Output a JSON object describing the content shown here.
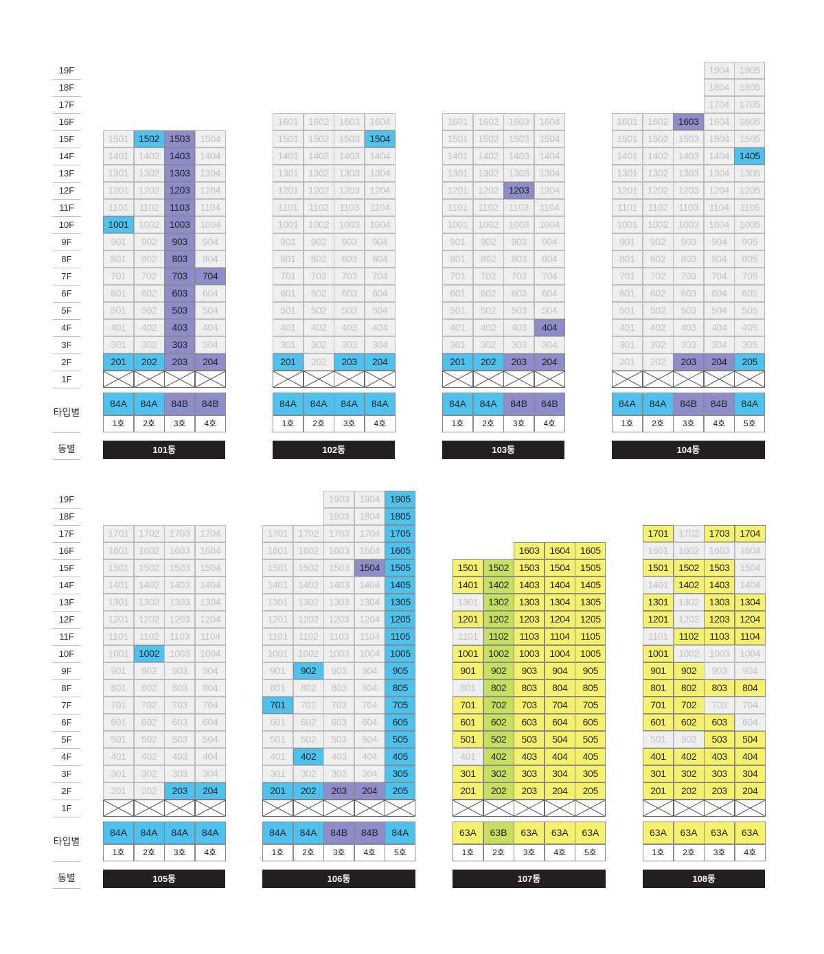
{
  "colors": {
    "unavailable_bg": "#efefef",
    "blue": "#4cc3ee",
    "purple": "#8e8cc9",
    "yellow": "#f6f36a",
    "green": "#c8df5d",
    "name_bar": "#231f20"
  },
  "legend_state_codes": {
    "n": "unavailable (grey)",
    "b": "blue",
    "p": "purple",
    "y": "yellow",
    "g": "green"
  },
  "row1": {
    "floors": [
      "19F",
      "18F",
      "17F",
      "16F",
      "15F",
      "14F",
      "13F",
      "12F",
      "11F",
      "10F",
      "9F",
      "8F",
      "7F",
      "6F",
      "5F",
      "4F",
      "3F",
      "2F",
      "1F"
    ],
    "type_label": "타입별",
    "name_label": "동별"
  },
  "row2": {
    "floors": [
      "19F",
      "18F",
      "17F",
      "16F",
      "15F",
      "14F",
      "13F",
      "12F",
      "11F",
      "10F",
      "9F",
      "8F",
      "7F",
      "6F",
      "5F",
      "4F",
      "3F",
      "2F",
      "1F"
    ],
    "type_label": "타입별",
    "name_label": "동별"
  },
  "buildings": [
    {
      "name": "101동",
      "units": [
        "1호",
        "2호",
        "3호",
        "4호"
      ],
      "types": [
        "84A",
        "84A",
        "84B",
        "84B"
      ],
      "type_colors": [
        "b",
        "b",
        "p",
        "p"
      ],
      "top_floor": [
        15,
        15,
        15,
        15
      ],
      "status": {
        "15": "nbpn",
        "14": "nnpn",
        "13": "nnpn",
        "12": "nnpn",
        "11": "nnpn",
        "10": "bnpn",
        "9": "nnpn",
        "8": "nnpn",
        "7": "nnpp",
        "6": "nnpn",
        "5": "nnpn",
        "4": "nnpn",
        "3": "nnpn",
        "2": "bbpp"
      }
    },
    {
      "name": "102동",
      "units": [
        "1호",
        "2호",
        "3호",
        "4호"
      ],
      "types": [
        "84A",
        "84A",
        "84A",
        "84A"
      ],
      "type_colors": [
        "b",
        "b",
        "b",
        "b"
      ],
      "top_floor": [
        16,
        16,
        16,
        16
      ],
      "status": {
        "16": "nnnn",
        "15": "nnnb",
        "14": "nnnn",
        "13": "nnnn",
        "12": "nnnn",
        "11": "nnnn",
        "10": "nnnn",
        "9": "nnnn",
        "8": "nnnn",
        "7": "nnnn",
        "6": "nnnn",
        "5": "nnnn",
        "4": "nnnn",
        "3": "nnnn",
        "2": "bnbb"
      }
    },
    {
      "name": "103동",
      "units": [
        "1호",
        "2호",
        "3호",
        "4호"
      ],
      "types": [
        "84A",
        "84A",
        "84B",
        "84B"
      ],
      "type_colors": [
        "b",
        "b",
        "p",
        "p"
      ],
      "top_floor": [
        16,
        16,
        16,
        16
      ],
      "status": {
        "16": "nnnn",
        "15": "nnnn",
        "14": "nnnn",
        "13": "nnnn",
        "12": "nnpn",
        "11": "nnnn",
        "10": "nnnn",
        "9": "nnnn",
        "8": "nnnn",
        "7": "nnnn",
        "6": "nnnn",
        "5": "nnnn",
        "4": "nnnp",
        "3": "nnnn",
        "2": "bbpp"
      }
    },
    {
      "name": "104동",
      "units": [
        "1호",
        "2호",
        "3호",
        "4호",
        "5호"
      ],
      "types": [
        "84A",
        "84A",
        "84B",
        "84B",
        "84A"
      ],
      "type_colors": [
        "b",
        "b",
        "p",
        "p",
        "b"
      ],
      "top_floor": [
        16,
        16,
        16,
        19,
        19
      ],
      "status": {
        "19": "nnnnn",
        "18": "nnnnn",
        "17": "nnnnn",
        "16": "nnpnn",
        "15": "nnnnn",
        "14": "nnnnb",
        "13": "nnnnn",
        "12": "nnnnn",
        "11": "nnnnn",
        "10": "nnnnn",
        "9": "nnnnn",
        "8": "nnnnn",
        "7": "nnnnn",
        "6": "nnnnn",
        "5": "nnnnn",
        "4": "nnnnn",
        "3": "nnnnn",
        "2": "nnppb"
      }
    },
    {
      "name": "105동",
      "units": [
        "1호",
        "2호",
        "3호",
        "4호"
      ],
      "types": [
        "84A",
        "84A",
        "84A",
        "84A"
      ],
      "type_colors": [
        "b",
        "b",
        "b",
        "b"
      ],
      "top_floor": [
        17,
        17,
        17,
        17
      ],
      "status": {
        "17": "nnnn",
        "16": "nnnn",
        "15": "nnnn",
        "14": "nnnn",
        "13": "nnnn",
        "12": "nnnn",
        "11": "nnnn",
        "10": "nbnn",
        "9": "nnnn",
        "8": "nnnn",
        "7": "nnnn",
        "6": "nnnn",
        "5": "nnnn",
        "4": "nnnn",
        "3": "nnnn",
        "2": "nnbb"
      }
    },
    {
      "name": "106동",
      "units": [
        "1호",
        "2호",
        "3호",
        "4호",
        "5호"
      ],
      "types": [
        "84A",
        "84A",
        "84B",
        "84B",
        "84A"
      ],
      "type_colors": [
        "b",
        "b",
        "p",
        "p",
        "b"
      ],
      "top_floor": [
        17,
        17,
        19,
        19,
        19
      ],
      "status": {
        "19": "nnnnb",
        "18": "nnnnb",
        "17": "nnnnb",
        "16": "nnnnb",
        "15": "nnnpb",
        "14": "nnnnb",
        "13": "nnnnb",
        "12": "nnnnb",
        "11": "nnnnb",
        "10": "nnnnb",
        "9": "nbnnb",
        "8": "nnnnb",
        "7": "bnnnb",
        "6": "nnnnb",
        "5": "nnnnb",
        "4": "nbnnb",
        "3": "nnnnb",
        "2": "bbppb"
      }
    },
    {
      "name": "107동",
      "units": [
        "1호",
        "2호",
        "3호",
        "4호",
        "5호"
      ],
      "types": [
        "63A",
        "63B",
        "63A",
        "63A",
        "63A"
      ],
      "type_colors": [
        "y",
        "g",
        "y",
        "y",
        "y"
      ],
      "top_floor": [
        15,
        15,
        16,
        16,
        16
      ],
      "status": {
        "16": "yyyyy",
        "15": "ygyyy",
        "14": "ygyyy",
        "13": "ngyyy",
        "12": "ygyyy",
        "11": "ngyyy",
        "10": "ygyyy",
        "9": "ygyyy",
        "8": "ngyyy",
        "7": "ygyyy",
        "6": "ygyyy",
        "5": "ygyyy",
        "4": "ngyyy",
        "3": "ygyyy",
        "2": "ygyyy"
      }
    },
    {
      "name": "108동",
      "units": [
        "1호",
        "2호",
        "3호",
        "4호"
      ],
      "types": [
        "63A",
        "63A",
        "63A",
        "63A"
      ],
      "type_colors": [
        "y",
        "y",
        "y",
        "y"
      ],
      "top_floor": [
        17,
        17,
        17,
        17
      ],
      "status": {
        "17": "ynyy",
        "16": "nnnn",
        "15": "yyyn",
        "14": "nyyn",
        "13": "ynyy",
        "12": "ynyy",
        "11": "nyyy",
        "10": "ynnn",
        "9": "yynn",
        "8": "yyyy",
        "7": "yynn",
        "6": "yyyn",
        "5": "nnyy",
        "4": "yyyy",
        "3": "yyyy",
        "2": "yyyy"
      }
    }
  ]
}
